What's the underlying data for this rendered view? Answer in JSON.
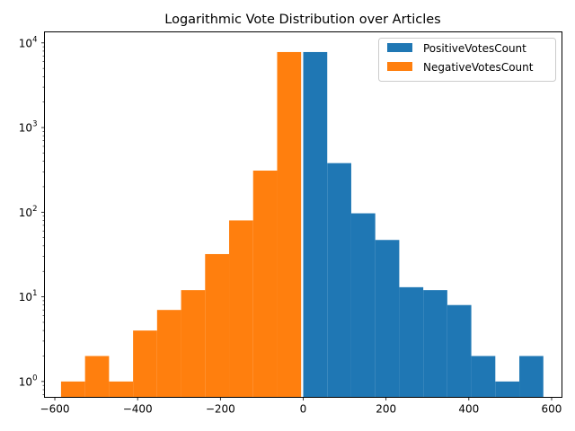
{
  "chart_data": {
    "type": "bar",
    "title": "Logarithmic Vote Distribution over Articles",
    "xlabel": "",
    "ylabel": "",
    "xlim": [
      -625,
      625
    ],
    "ylim": [
      0.65,
      13500
    ],
    "yscale": "log",
    "grid": false,
    "legend_position": "top-right",
    "x_ticks": [
      -600,
      -400,
      -200,
      0,
      200,
      400,
      600
    ],
    "x_tick_labels": [
      "−600",
      "−400",
      "−200",
      "0",
      "200",
      "400",
      "600"
    ],
    "y_ticks": [
      1,
      10,
      100,
      1000,
      10000
    ],
    "y_tick_bases": [
      "10",
      "10",
      "10",
      "10",
      "10"
    ],
    "y_tick_exponents": [
      "0",
      "1",
      "2",
      "3",
      "4"
    ],
    "series": [
      {
        "name": "PositiveVotesCount",
        "color": "#1f77b4",
        "bins": [
          {
            "start": 0,
            "end": 58,
            "count": 7800
          },
          {
            "start": 58,
            "end": 116,
            "count": 380
          },
          {
            "start": 116,
            "end": 174,
            "count": 97
          },
          {
            "start": 174,
            "end": 232,
            "count": 47
          },
          {
            "start": 232,
            "end": 290,
            "count": 13
          },
          {
            "start": 290,
            "end": 348,
            "count": 12
          },
          {
            "start": 348,
            "end": 406,
            "count": 8
          },
          {
            "start": 406,
            "end": 464,
            "count": 2
          },
          {
            "start": 464,
            "end": 522,
            "count": 1
          },
          {
            "start": 522,
            "end": 580,
            "count": 2
          }
        ]
      },
      {
        "name": "NegativeVotesCount",
        "color": "#ff7f0e",
        "bins": [
          {
            "start": -585,
            "end": -527,
            "count": 1
          },
          {
            "start": -527,
            "end": -469,
            "count": 2
          },
          {
            "start": -469,
            "end": -411,
            "count": 1
          },
          {
            "start": -411,
            "end": -353,
            "count": 4
          },
          {
            "start": -353,
            "end": -295,
            "count": 7
          },
          {
            "start": -295,
            "end": -237,
            "count": 12
          },
          {
            "start": -237,
            "end": -179,
            "count": 32
          },
          {
            "start": -179,
            "end": -121,
            "count": 80
          },
          {
            "start": -121,
            "end": -63,
            "count": 310
          },
          {
            "start": -63,
            "end": -5,
            "count": 7800
          }
        ]
      }
    ]
  }
}
